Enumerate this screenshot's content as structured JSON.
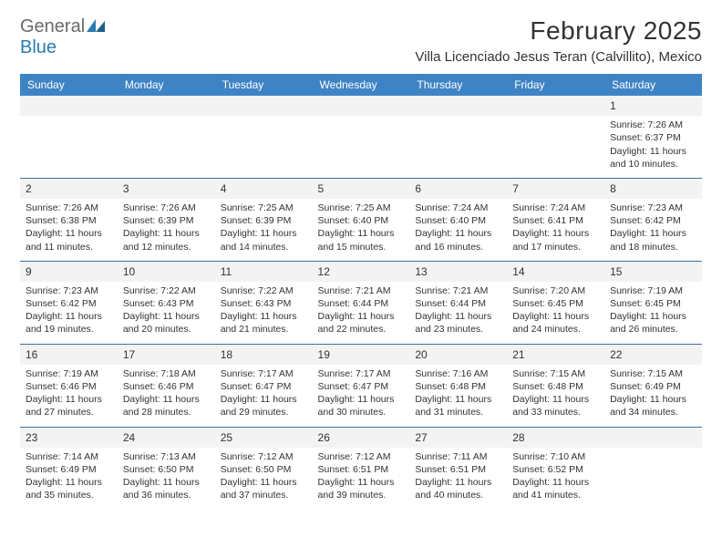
{
  "logo": {
    "word1": "General",
    "word2": "Blue"
  },
  "title": "February 2025",
  "location": "Villa Licenciado Jesus Teran (Calvillito), Mexico",
  "colors": {
    "header_bg": "#3e84c5",
    "header_text": "#ffffff",
    "daynum_bg": "#f3f3f3",
    "row_border": "#3e6fa0",
    "body_text": "#333333",
    "logo_grey": "#6a6a6a",
    "logo_blue": "#2a7ab0"
  },
  "day_names": [
    "Sunday",
    "Monday",
    "Tuesday",
    "Wednesday",
    "Thursday",
    "Friday",
    "Saturday"
  ],
  "weeks": [
    [
      {
        "n": "",
        "lines": []
      },
      {
        "n": "",
        "lines": []
      },
      {
        "n": "",
        "lines": []
      },
      {
        "n": "",
        "lines": []
      },
      {
        "n": "",
        "lines": []
      },
      {
        "n": "",
        "lines": []
      },
      {
        "n": "1",
        "lines": [
          "Sunrise: 7:26 AM",
          "Sunset: 6:37 PM",
          "Daylight: 11 hours and 10 minutes."
        ]
      }
    ],
    [
      {
        "n": "2",
        "lines": [
          "Sunrise: 7:26 AM",
          "Sunset: 6:38 PM",
          "Daylight: 11 hours and 11 minutes."
        ]
      },
      {
        "n": "3",
        "lines": [
          "Sunrise: 7:26 AM",
          "Sunset: 6:39 PM",
          "Daylight: 11 hours and 12 minutes."
        ]
      },
      {
        "n": "4",
        "lines": [
          "Sunrise: 7:25 AM",
          "Sunset: 6:39 PM",
          "Daylight: 11 hours and 14 minutes."
        ]
      },
      {
        "n": "5",
        "lines": [
          "Sunrise: 7:25 AM",
          "Sunset: 6:40 PM",
          "Daylight: 11 hours and 15 minutes."
        ]
      },
      {
        "n": "6",
        "lines": [
          "Sunrise: 7:24 AM",
          "Sunset: 6:40 PM",
          "Daylight: 11 hours and 16 minutes."
        ]
      },
      {
        "n": "7",
        "lines": [
          "Sunrise: 7:24 AM",
          "Sunset: 6:41 PM",
          "Daylight: 11 hours and 17 minutes."
        ]
      },
      {
        "n": "8",
        "lines": [
          "Sunrise: 7:23 AM",
          "Sunset: 6:42 PM",
          "Daylight: 11 hours and 18 minutes."
        ]
      }
    ],
    [
      {
        "n": "9",
        "lines": [
          "Sunrise: 7:23 AM",
          "Sunset: 6:42 PM",
          "Daylight: 11 hours and 19 minutes."
        ]
      },
      {
        "n": "10",
        "lines": [
          "Sunrise: 7:22 AM",
          "Sunset: 6:43 PM",
          "Daylight: 11 hours and 20 minutes."
        ]
      },
      {
        "n": "11",
        "lines": [
          "Sunrise: 7:22 AM",
          "Sunset: 6:43 PM",
          "Daylight: 11 hours and 21 minutes."
        ]
      },
      {
        "n": "12",
        "lines": [
          "Sunrise: 7:21 AM",
          "Sunset: 6:44 PM",
          "Daylight: 11 hours and 22 minutes."
        ]
      },
      {
        "n": "13",
        "lines": [
          "Sunrise: 7:21 AM",
          "Sunset: 6:44 PM",
          "Daylight: 11 hours and 23 minutes."
        ]
      },
      {
        "n": "14",
        "lines": [
          "Sunrise: 7:20 AM",
          "Sunset: 6:45 PM",
          "Daylight: 11 hours and 24 minutes."
        ]
      },
      {
        "n": "15",
        "lines": [
          "Sunrise: 7:19 AM",
          "Sunset: 6:45 PM",
          "Daylight: 11 hours and 26 minutes."
        ]
      }
    ],
    [
      {
        "n": "16",
        "lines": [
          "Sunrise: 7:19 AM",
          "Sunset: 6:46 PM",
          "Daylight: 11 hours and 27 minutes."
        ]
      },
      {
        "n": "17",
        "lines": [
          "Sunrise: 7:18 AM",
          "Sunset: 6:46 PM",
          "Daylight: 11 hours and 28 minutes."
        ]
      },
      {
        "n": "18",
        "lines": [
          "Sunrise: 7:17 AM",
          "Sunset: 6:47 PM",
          "Daylight: 11 hours and 29 minutes."
        ]
      },
      {
        "n": "19",
        "lines": [
          "Sunrise: 7:17 AM",
          "Sunset: 6:47 PM",
          "Daylight: 11 hours and 30 minutes."
        ]
      },
      {
        "n": "20",
        "lines": [
          "Sunrise: 7:16 AM",
          "Sunset: 6:48 PM",
          "Daylight: 11 hours and 31 minutes."
        ]
      },
      {
        "n": "21",
        "lines": [
          "Sunrise: 7:15 AM",
          "Sunset: 6:48 PM",
          "Daylight: 11 hours and 33 minutes."
        ]
      },
      {
        "n": "22",
        "lines": [
          "Sunrise: 7:15 AM",
          "Sunset: 6:49 PM",
          "Daylight: 11 hours and 34 minutes."
        ]
      }
    ],
    [
      {
        "n": "23",
        "lines": [
          "Sunrise: 7:14 AM",
          "Sunset: 6:49 PM",
          "Daylight: 11 hours and 35 minutes."
        ]
      },
      {
        "n": "24",
        "lines": [
          "Sunrise: 7:13 AM",
          "Sunset: 6:50 PM",
          "Daylight: 11 hours and 36 minutes."
        ]
      },
      {
        "n": "25",
        "lines": [
          "Sunrise: 7:12 AM",
          "Sunset: 6:50 PM",
          "Daylight: 11 hours and 37 minutes."
        ]
      },
      {
        "n": "26",
        "lines": [
          "Sunrise: 7:12 AM",
          "Sunset: 6:51 PM",
          "Daylight: 11 hours and 39 minutes."
        ]
      },
      {
        "n": "27",
        "lines": [
          "Sunrise: 7:11 AM",
          "Sunset: 6:51 PM",
          "Daylight: 11 hours and 40 minutes."
        ]
      },
      {
        "n": "28",
        "lines": [
          "Sunrise: 7:10 AM",
          "Sunset: 6:52 PM",
          "Daylight: 11 hours and 41 minutes."
        ]
      },
      {
        "n": "",
        "lines": []
      }
    ]
  ]
}
